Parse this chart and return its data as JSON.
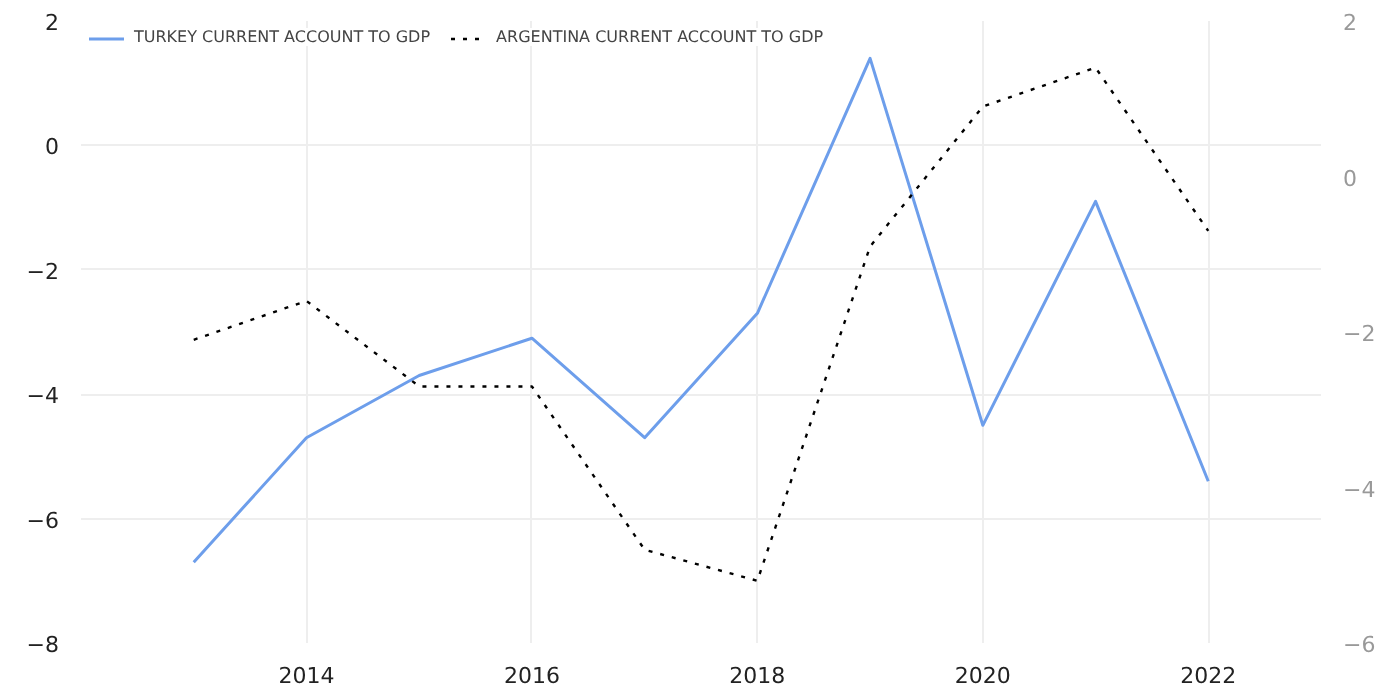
{
  "chart_data": {
    "type": "line",
    "x": [
      2013,
      2014,
      2015,
      2016,
      2017,
      2018,
      2019,
      2020,
      2021,
      2022
    ],
    "series": [
      {
        "name": "TURKEY CURRENT ACCOUNT TO GDP",
        "color": "#6d9eeb",
        "line_style": "solid",
        "values": [
          -6.7,
          -4.7,
          -3.7,
          -3.1,
          -4.7,
          -2.7,
          1.4,
          -4.5,
          -0.9,
          -5.4
        ]
      },
      {
        "name": "ARGENTINA CURRENT ACCOUNT TO GDP",
        "color": "#000000",
        "line_style": "dotted",
        "axis": "y2",
        "values": [
          -2.1,
          -1.6,
          -2.7,
          -2.7,
          -4.8,
          -5.2,
          -0.9,
          0.9,
          1.4,
          -0.7
        ]
      }
    ],
    "xlim": [
      2012,
      2023
    ],
    "xticks": [
      2014,
      2016,
      2018,
      2020,
      2022
    ],
    "ylim": [
      -8,
      2
    ],
    "yticks": [
      -8,
      -6,
      -4,
      -2,
      0,
      2
    ],
    "y2lim": [
      -6,
      2
    ],
    "y2ticks": [
      -6,
      -4,
      -2,
      0,
      2
    ],
    "grid": true,
    "legend": "top left"
  }
}
